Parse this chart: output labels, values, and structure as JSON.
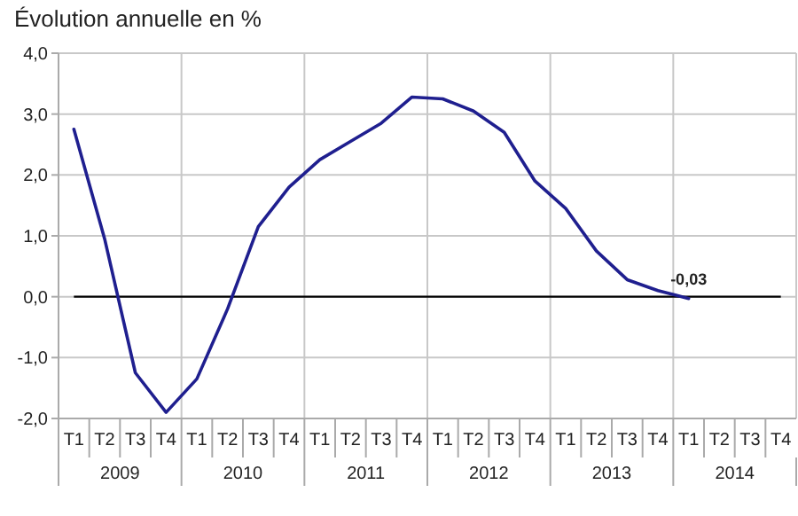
{
  "chart_data": {
    "type": "line",
    "title": "Évolution annuelle en %",
    "categories": [
      "T1",
      "T2",
      "T3",
      "T4",
      "T1",
      "T2",
      "T3",
      "T4",
      "T1",
      "T2",
      "T3",
      "T4",
      "T1",
      "T2",
      "T3",
      "T4",
      "T1",
      "T2",
      "T3",
      "T4",
      "T1",
      "T2",
      "T3",
      "T4"
    ],
    "series": [
      {
        "color": "#1f1f8f",
        "values": [
          2.75,
          0.95,
          -1.25,
          -1.9,
          -1.35,
          -0.2,
          1.15,
          1.8,
          2.25,
          2.55,
          2.85,
          3.28,
          3.25,
          3.05,
          2.7,
          1.9,
          1.45,
          0.75,
          0.28,
          0.1,
          -0.03,
          null,
          null,
          null
        ],
        "value_labels": [
          null,
          null,
          null,
          null,
          null,
          null,
          null,
          null,
          null,
          null,
          null,
          null,
          null,
          null,
          null,
          null,
          null,
          null,
          null,
          null,
          "-0,03",
          null,
          null,
          null
        ]
      }
    ],
    "annotations": [
      "2009",
      "2010",
      "2011",
      "2012",
      "2013",
      "2014"
    ],
    "ylim": [
      -2,
      4
    ],
    "yticks": [
      {
        "value": -2,
        "label": "-2,0"
      },
      {
        "value": -1,
        "label": "-1,0"
      },
      {
        "value": 0,
        "label": "0,0"
      },
      {
        "value": 1,
        "label": "1,0"
      },
      {
        "value": 2,
        "label": "2,0"
      },
      {
        "value": 3,
        "label": "3,0"
      },
      {
        "value": 4,
        "label": "4,0"
      }
    ],
    "ref_lines": [
      {
        "axis": "y",
        "value": 0,
        "color": "#000000"
      }
    ],
    "grid": true,
    "marker": "none",
    "line_style": "solid"
  }
}
